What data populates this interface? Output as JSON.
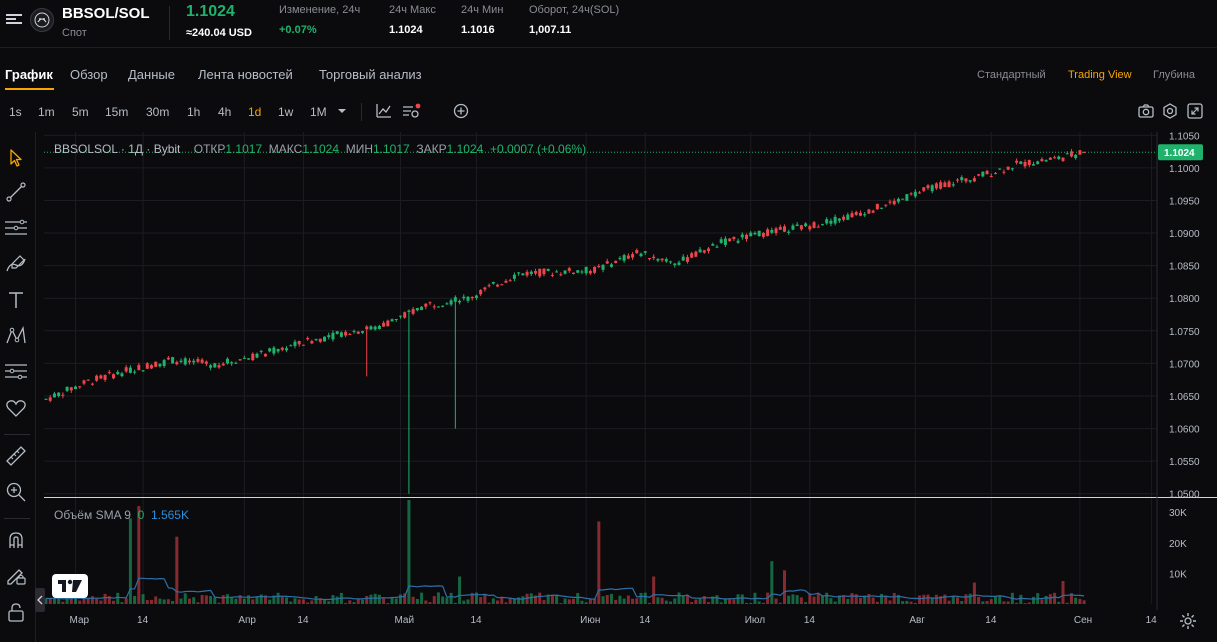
{
  "header": {
    "pair": "BBSOL/SOL",
    "market_type": "Спот",
    "last_price": "1.1024",
    "usd_price": "≈240.04 USD",
    "stats": [
      {
        "label": "Изменение, 24ч",
        "value": "+0.07%",
        "green": true
      },
      {
        "label": "24ч Макс",
        "value": "1.1024",
        "green": false
      },
      {
        "label": "24ч Мин",
        "value": "1.1016",
        "green": false
      },
      {
        "label": "Оборот, 24ч(SOL)",
        "value": "1,007.11",
        "green": false
      }
    ]
  },
  "tabs": [
    "График",
    "Обзор",
    "Данные",
    "Лента новостей",
    "Торговый анализ"
  ],
  "view_tabs": [
    "Стандартный",
    "Trading View",
    "Глубина"
  ],
  "intervals": [
    "1s",
    "1m",
    "5m",
    "15m",
    "30m",
    "1h",
    "4h",
    "1d",
    "1w",
    "1M"
  ],
  "active_interval": "1d",
  "legend": {
    "symbol": "BBSOLSOL · 1Д · Bybit",
    "open_label": "ОТКР",
    "open": "1.1017",
    "high_label": "МАКС",
    "high": "1.1024",
    "low_label": "МИН",
    "low": "1.1017",
    "close_label": "ЗАКР",
    "close": "1.1024",
    "change": "+0.0007 (+0.06%)"
  },
  "volume_legend": {
    "label": "Объём SMA 9",
    "value1": "0",
    "value2": "1.565K"
  },
  "colors": {
    "up": "#20b26c",
    "down": "#ef454a",
    "accent": "#f7a600",
    "sma": "#2e6fa8"
  },
  "chart_data": {
    "type": "candlestick",
    "price_ticks": [
      "1.1050",
      "1.1000",
      "1.0950",
      "1.0900",
      "1.0850",
      "1.0800",
      "1.0750",
      "1.0700",
      "1.0650",
      "1.0600",
      "1.0550",
      "1.0500"
    ],
    "price_range": [
      1.0495,
      1.1055
    ],
    "volume_ticks": [
      "30K",
      "20K",
      "10K"
    ],
    "volume_range": [
      0,
      34000
    ],
    "x_labels": [
      "Мар",
      "14",
      "Апр",
      "14",
      "Май",
      "14",
      "Июн",
      "14",
      "Июл",
      "14",
      "Авг",
      "14",
      "Сен",
      "14"
    ],
    "current_price_label": "1.1024",
    "anchors": [
      [
        0,
        1.0645
      ],
      [
        10,
        1.0672
      ],
      [
        20,
        1.069
      ],
      [
        30,
        1.0705
      ],
      [
        40,
        1.0698
      ],
      [
        50,
        1.0712
      ],
      [
        60,
        1.073
      ],
      [
        70,
        1.0746
      ],
      [
        78,
        1.0755
      ],
      [
        84,
        1.077
      ],
      [
        90,
        1.079
      ],
      [
        100,
        1.08
      ],
      [
        112,
        1.0838
      ],
      [
        130,
        1.0843
      ],
      [
        140,
        1.087
      ],
      [
        150,
        1.0855
      ],
      [
        160,
        1.0885
      ],
      [
        170,
        1.09
      ],
      [
        180,
        1.091
      ],
      [
        190,
        1.0925
      ],
      [
        200,
        1.0945
      ],
      [
        210,
        1.097
      ],
      [
        220,
        1.0985
      ],
      [
        230,
        1.1005
      ],
      [
        240,
        1.1015
      ],
      [
        246,
        1.1024
      ]
    ],
    "spikes": [
      {
        "day": 76,
        "low": 1.068
      },
      {
        "day": 86,
        "low": 1.05
      },
      {
        "day": 97,
        "low": 1.06
      }
    ],
    "volume_spikes": [
      {
        "day": 20,
        "value": 28000
      },
      {
        "day": 22,
        "value": 32000
      },
      {
        "day": 31,
        "value": 22000
      },
      {
        "day": 86,
        "value": 34000
      },
      {
        "day": 98,
        "value": 9000
      },
      {
        "day": 131,
        "value": 27000
      },
      {
        "day": 144,
        "value": 9000
      },
      {
        "day": 172,
        "value": 14000
      },
      {
        "day": 175,
        "value": 11000
      },
      {
        "day": 220,
        "value": 7000
      },
      {
        "day": 241,
        "value": 7500
      }
    ]
  }
}
